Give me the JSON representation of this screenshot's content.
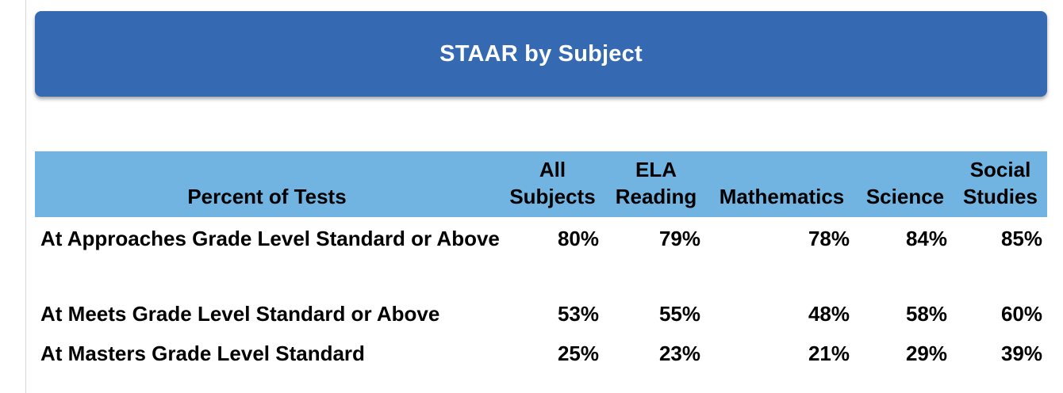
{
  "banner": {
    "title": "STAAR by Subject"
  },
  "table": {
    "header": {
      "label": "Percent of Tests",
      "columns": [
        {
          "line1": "All",
          "line2": "Subjects"
        },
        {
          "line1": "ELA",
          "line2": "Reading"
        },
        {
          "line1": "",
          "line2": "Mathematics"
        },
        {
          "line1": "",
          "line2": "Science"
        },
        {
          "line1": "Social",
          "line2": "Studies"
        }
      ]
    },
    "rows": [
      {
        "label": "At Approaches Grade Level Standard or Above",
        "values": [
          "80%",
          "79%",
          "78%",
          "84%",
          "85%"
        ]
      },
      {
        "label": "At Meets Grade Level Standard or Above",
        "values": [
          "53%",
          "55%",
          "48%",
          "58%",
          "60%"
        ]
      },
      {
        "label": "At Masters Grade Level Standard",
        "values": [
          "25%",
          "23%",
          "21%",
          "29%",
          "39%"
        ]
      }
    ]
  }
}
